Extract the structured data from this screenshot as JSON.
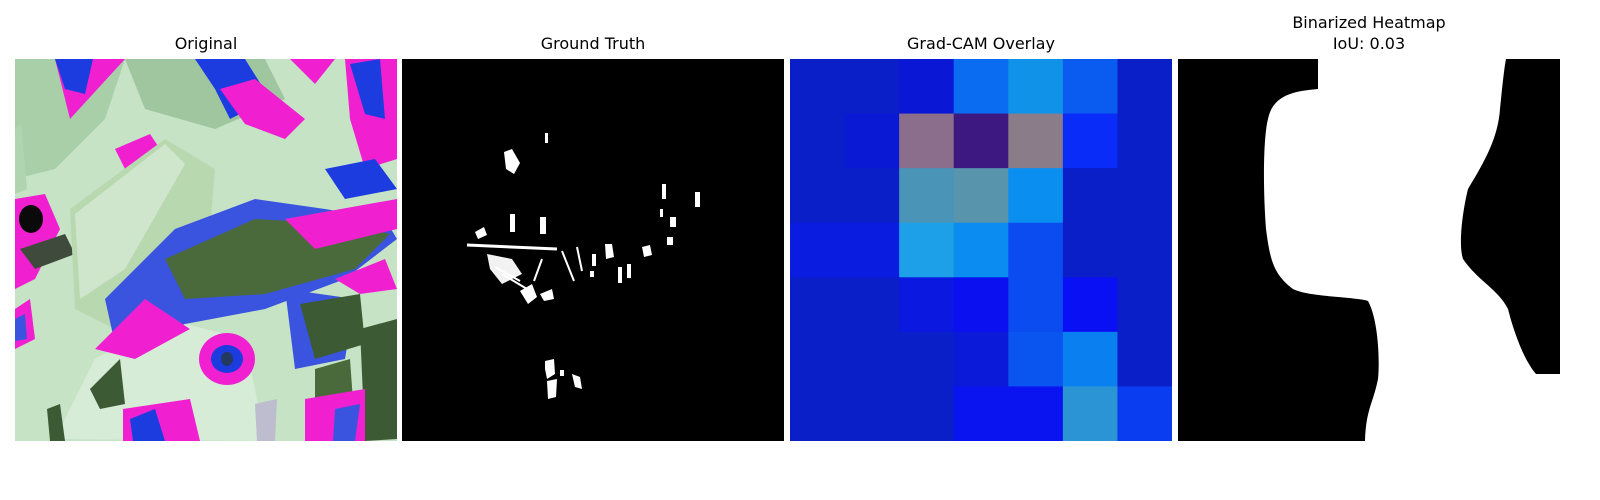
{
  "panels": [
    {
      "title": "Original"
    },
    {
      "title": "Ground Truth"
    },
    {
      "title": "Grad-CAM Overlay",
      "heatmap_grid": [
        [
          "#0a1fc8",
          "#0a1fc8",
          "#0a18d6",
          "#0a6cf0",
          "#0f92e8",
          "#0a5cf0",
          "#0a1fc8"
        ],
        [
          "#0a1fc8",
          "#0a1ad4",
          "#8a6e8c",
          "#3c1880",
          "#8a7c88",
          "#0a2cf8",
          "#0a1fc8"
        ],
        [
          "#0a1fc8",
          "#0a1fc8",
          "#4a94b8",
          "#5894ac",
          "#0a8ef0",
          "#0a1fc8",
          "#0a1fc8"
        ],
        [
          "#0a1ce0",
          "#0a1ce0",
          "#1ea0e8",
          "#0a8cf0",
          "#0a4cf0",
          "#0a1fc8",
          "#0a1fc8"
        ],
        [
          "#0a1fc8",
          "#0a1fc8",
          "#0a18e0",
          "#0a10f0",
          "#0a4cf0",
          "#0a10f4",
          "#0a1fc8"
        ],
        [
          "#0a1fc8",
          "#0a1fc8",
          "#0a1fc8",
          "#0a1ad8",
          "#0a54f0",
          "#0a80f0",
          "#0a1fc8"
        ],
        [
          "#0a1fc8",
          "#0a1fc8",
          "#0a1fc8",
          "#0a14f0",
          "#0a14f0",
          "#2a94d4",
          "#0a3cf0"
        ]
      ]
    },
    {
      "title": "Binarized Heatmap",
      "subtitle": "IoU: 0.03"
    }
  ]
}
